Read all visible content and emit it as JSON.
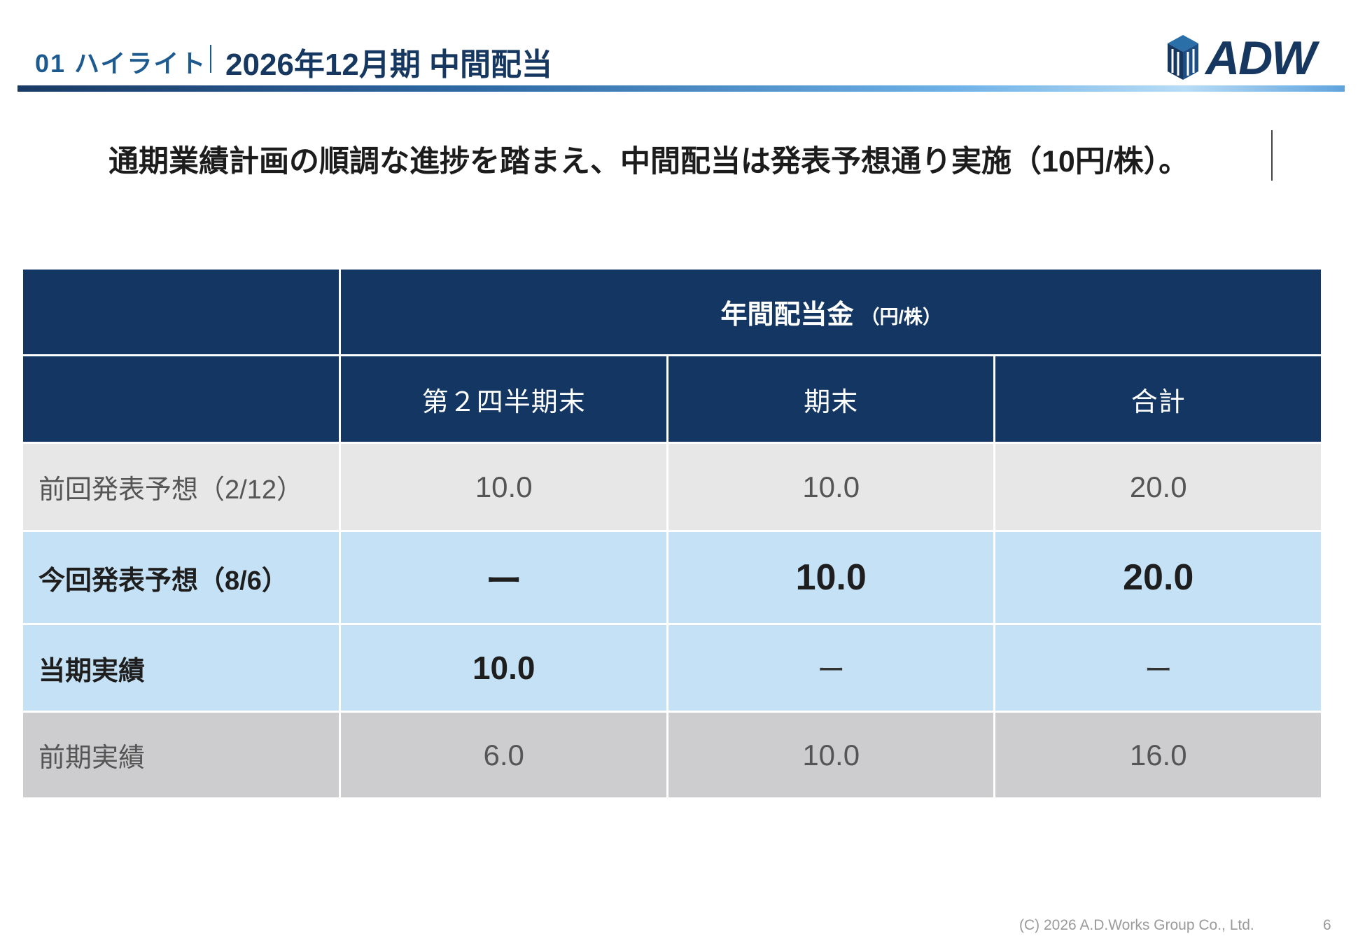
{
  "header": {
    "section": "01 ハイライト",
    "title": "2026年12月期 中間配当",
    "logo": "ADW",
    "logo_color": "#16375f"
  },
  "headline": "通期業績計画の順調な進捗を踏まえ、中間配当は発表予想通り実施（10円/株）。",
  "table": {
    "group_title": "年間配当金",
    "group_unit": "（円/株）",
    "columns": [
      "第２四半期末",
      "期末",
      "合計"
    ],
    "rows": [
      {
        "label": "前回発表予想（2/12）",
        "values": [
          "10.0",
          "10.0",
          "20.0"
        ]
      },
      {
        "label": "今回発表予想（8/6）",
        "values": [
          "ー",
          "10.0",
          "20.0"
        ]
      },
      {
        "label": "当期実績",
        "values": [
          "10.0",
          "ー",
          "ー"
        ]
      },
      {
        "label": "前期実績",
        "values": [
          "6.0",
          "10.0",
          "16.0"
        ]
      }
    ]
  },
  "colors": {
    "header_fill": "#133662",
    "highlight_fill": "#c5e1f5",
    "light_gray_fill": "#e7e7e7",
    "gray_fill": "#cdcdcf"
  },
  "footer": {
    "copyright": "(C) 2026  A.D.Works Group Co., Ltd.",
    "page": "6"
  }
}
